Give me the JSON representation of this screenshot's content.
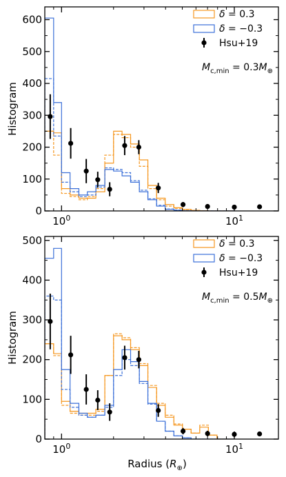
{
  "colors": {
    "orange": "#f5961e",
    "blue": "#3a6fd8",
    "points": "#000000"
  },
  "chart_data": [
    {
      "type": "histogram",
      "xscale": "log",
      "xlim": [
        0.8,
        18
      ],
      "ylim": [
        0,
        640
      ],
      "xtick_values": [
        1,
        10
      ],
      "xtick_labels": [
        "10⁰",
        "10¹"
      ],
      "ytick_values": [
        0,
        100,
        200,
        300,
        400,
        500,
        600
      ],
      "ylabel": "Histogram",
      "xlabel": "",
      "annotation": "M_c,min = 0.3M⊕",
      "legend_position": "top-right",
      "bin_edges": [
        0.8,
        0.9,
        1.0,
        1.12,
        1.26,
        1.41,
        1.58,
        1.78,
        2.0,
        2.24,
        2.51,
        2.82,
        3.16,
        3.55,
        3.98,
        4.47,
        5.01,
        5.62,
        6.31,
        7.08,
        7.94,
        8.91,
        10.0
      ],
      "series": [
        {
          "name": "δ = 0.3",
          "style": "solid",
          "color": "orange",
          "values": [
            250,
            245,
            70,
            50,
            40,
            40,
            60,
            150,
            250,
            240,
            210,
            160,
            80,
            40,
            20,
            10,
            5,
            2,
            1,
            0,
            0,
            0
          ]
        },
        {
          "name": "",
          "style": "dashed",
          "color": "orange",
          "values": [
            250,
            175,
            55,
            45,
            35,
            45,
            70,
            175,
            240,
            230,
            200,
            140,
            70,
            35,
            15,
            8,
            4,
            2,
            1,
            0,
            0,
            0
          ]
        },
        {
          "name": "δ = −0.3",
          "style": "solid",
          "color": "blue",
          "values": [
            605,
            340,
            120,
            70,
            50,
            60,
            80,
            130,
            125,
            110,
            90,
            60,
            35,
            15,
            5,
            2,
            1,
            0,
            0,
            0,
            0,
            0
          ]
        },
        {
          "name": "",
          "style": "dashed",
          "color": "blue",
          "values": [
            415,
            235,
            90,
            60,
            45,
            50,
            75,
            135,
            130,
            120,
            95,
            65,
            38,
            18,
            6,
            3,
            1,
            0,
            0,
            0,
            0,
            0
          ]
        }
      ],
      "points": {
        "name": "Hsu+19",
        "x": [
          0.86,
          1.13,
          1.39,
          1.62,
          1.9,
          2.32,
          2.8,
          3.63,
          5.05,
          7.0,
          10.0,
          14.0
        ],
        "y": [
          296,
          212,
          125,
          98,
          68,
          205,
          200,
          72,
          20,
          14,
          12,
          13
        ],
        "yerr": [
          70,
          48,
          38,
          25,
          22,
          30,
          22,
          16,
          8,
          7,
          7,
          6
        ]
      }
    },
    {
      "type": "histogram",
      "xscale": "log",
      "xlim": [
        0.8,
        18
      ],
      "ylim": [
        0,
        510
      ],
      "xtick_values": [
        1,
        10
      ],
      "xtick_labels": [
        "10⁰",
        "10¹"
      ],
      "ytick_values": [
        0,
        100,
        200,
        300,
        400,
        500
      ],
      "ylabel": "Histogram",
      "xlabel": "Radius (R⊕)",
      "annotation": "M_c,min = 0.5M⊕",
      "legend_position": "top-right",
      "bin_edges": [
        0.8,
        0.9,
        1.0,
        1.12,
        1.26,
        1.41,
        1.58,
        1.78,
        2.0,
        2.24,
        2.51,
        2.82,
        3.16,
        3.55,
        3.98,
        4.47,
        5.01,
        5.62,
        6.31,
        7.08,
        7.94,
        8.91,
        10.0
      ],
      "series": [
        {
          "name": "δ = 0.3",
          "style": "solid",
          "color": "orange",
          "values": [
            240,
            215,
            95,
            70,
            65,
            65,
            75,
            160,
            260,
            250,
            225,
            185,
            130,
            85,
            55,
            35,
            25,
            15,
            30,
            10,
            0,
            0
          ]
        },
        {
          "name": "",
          "style": "dashed",
          "color": "orange",
          "values": [
            240,
            210,
            85,
            65,
            60,
            60,
            70,
            160,
            265,
            255,
            230,
            190,
            135,
            90,
            60,
            38,
            25,
            15,
            35,
            10,
            0,
            0
          ]
        },
        {
          "name": "δ = −0.3",
          "style": "solid",
          "color": "blue",
          "values": [
            455,
            480,
            175,
            90,
            65,
            55,
            60,
            85,
            175,
            225,
            195,
            145,
            90,
            45,
            20,
            8,
            3,
            0,
            0,
            0,
            0,
            0
          ]
        },
        {
          "name": "",
          "style": "dashed",
          "color": "blue",
          "values": [
            360,
            350,
            125,
            80,
            60,
            55,
            60,
            80,
            160,
            200,
            185,
            140,
            88,
            45,
            20,
            8,
            3,
            0,
            0,
            0,
            0,
            0
          ]
        }
      ],
      "points": {
        "name": "Hsu+19",
        "x": [
          0.86,
          1.13,
          1.39,
          1.62,
          1.9,
          2.32,
          2.8,
          3.63,
          5.05,
          7.0,
          10.0,
          14.0
        ],
        "y": [
          296,
          212,
          125,
          98,
          68,
          205,
          200,
          72,
          20,
          14,
          12,
          13
        ],
        "yerr": [
          70,
          48,
          38,
          25,
          22,
          30,
          22,
          16,
          8,
          7,
          7,
          6
        ]
      }
    }
  ]
}
